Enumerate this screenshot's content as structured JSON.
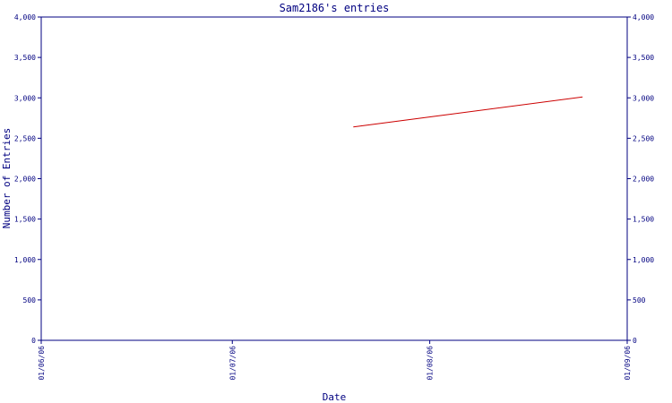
{
  "colors": {
    "axis": "#000080",
    "series": "#cc0000",
    "text": "#000080",
    "background": "#ffffff"
  },
  "chart_data": {
    "type": "line",
    "title": "Sam2186's entries",
    "xlabel": "Date",
    "ylabel": "Number of Entries",
    "x_ticks": [
      "01/06/06",
      "01/07/06",
      "01/08/06",
      "01/09/06"
    ],
    "xlim": [
      "01/06/06",
      "01/09/06"
    ],
    "y_ticks": [
      "0",
      "500",
      "1,000",
      "1,500",
      "2,000",
      "2,500",
      "3,000",
      "3,500",
      "4,000"
    ],
    "ylim": [
      0,
      4000
    ],
    "grid": false,
    "series": [
      {
        "x": [
          "2006-07-20",
          "2006-08-25"
        ],
        "values": [
          2640,
          3010
        ]
      }
    ]
  }
}
